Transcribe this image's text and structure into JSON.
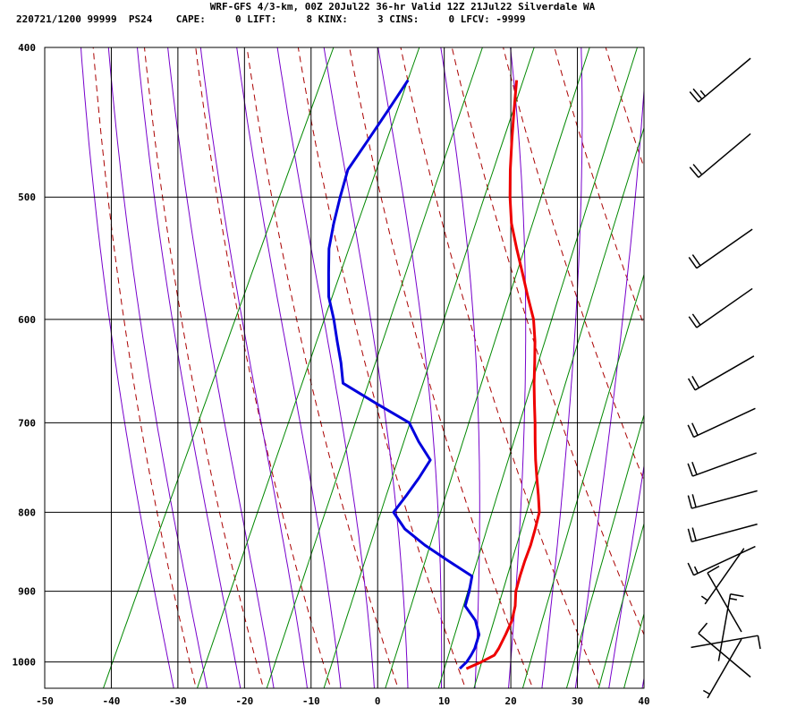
{
  "header": {
    "line1": "WRF-GFS 4/3-km, 00Z 20Jul22 36-hr Valid 12Z 21Jul22 Silverdale WA",
    "line2": "220721/1200 99999  PS24    CAPE:     0 LIFT:     8 KINX:     3 CINS:     0 LFCV: -9999"
  },
  "colors": {
    "temperature": "#ee0000",
    "dewpoint": "#0000dd",
    "dry_adiabat": "#aa0000",
    "moist_adiabat": "#7700cc",
    "mixing_ratio": "#008800",
    "grid": "#000000",
    "wind_barb": "#000000"
  },
  "chart_data": {
    "type": "line",
    "title": "WRF-GFS 4/3-km, 00Z 20Jul22 36-hr Valid 12Z 21Jul22 Silverdale WA",
    "x_axis": {
      "label": "",
      "range": [
        -50,
        40
      ],
      "ticks": [
        -50,
        -40,
        -30,
        -20,
        -10,
        0,
        10,
        20,
        30,
        40
      ]
    },
    "y_axis": {
      "label": "",
      "scale": "log",
      "range": [
        1040,
        400
      ],
      "ticks": [
        400,
        500,
        600,
        700,
        800,
        900,
        1000
      ]
    },
    "grid": true,
    "series": [
      {
        "role": "temperature",
        "pressure": [
          1010,
          1000,
          990,
          980,
          960,
          940,
          920,
          900,
          880,
          860,
          840,
          820,
          800,
          780,
          760,
          740,
          720,
          700,
          680,
          660,
          640,
          620,
          600,
          580,
          560,
          540,
          520,
          500,
          480,
          460,
          440,
          420
        ],
        "temp": [
          12.0,
          13.8,
          15.3,
          15.5,
          15.6,
          15.6,
          15.1,
          14.2,
          13.8,
          13.5,
          13.3,
          12.9,
          12.4,
          11.1,
          9.7,
          8.3,
          7.0,
          5.7,
          4.3,
          2.9,
          1.6,
          0.2,
          -1.5,
          -3.9,
          -6.3,
          -8.8,
          -11.3,
          -13.3,
          -15.1,
          -16.8,
          -18.5,
          -20.2
        ]
      },
      {
        "role": "dewpoint",
        "pressure": [
          1010,
          1000,
          990,
          980,
          960,
          940,
          920,
          900,
          880,
          860,
          840,
          820,
          800,
          780,
          760,
          740,
          720,
          700,
          680,
          660,
          640,
          620,
          600,
          580,
          560,
          540,
          520,
          500,
          480,
          460,
          440,
          420
        ],
        "dewpoint": [
          11.0,
          11.6,
          11.8,
          11.9,
          11.6,
          10.1,
          7.6,
          7.2,
          6.6,
          2.0,
          -2.6,
          -6.7,
          -9.5,
          -8.7,
          -8.0,
          -7.5,
          -10.5,
          -13.2,
          -19.5,
          -25.8,
          -27.5,
          -29.5,
          -31.5,
          -33.8,
          -35.4,
          -37.0,
          -38.0,
          -38.8,
          -39.5,
          -38.5,
          -37.5,
          -36.5
        ]
      }
    ],
    "wind_barbs": [
      {
        "pressure": 420,
        "direction": 230,
        "speed_kt": 25
      },
      {
        "pressure": 470,
        "direction": 230,
        "speed_kt": 20
      },
      {
        "pressure": 540,
        "direction": 235,
        "speed_kt": 20
      },
      {
        "pressure": 590,
        "direction": 235,
        "speed_kt": 20
      },
      {
        "pressure": 650,
        "direction": 240,
        "speed_kt": 20
      },
      {
        "pressure": 700,
        "direction": 245,
        "speed_kt": 20
      },
      {
        "pressure": 745,
        "direction": 250,
        "speed_kt": 20
      },
      {
        "pressure": 785,
        "direction": 255,
        "speed_kt": 20
      },
      {
        "pressure": 825,
        "direction": 255,
        "speed_kt": 20
      },
      {
        "pressure": 860,
        "direction": 245,
        "speed_kt": 15
      },
      {
        "pressure": 880,
        "direction": 215,
        "speed_kt": 5
      },
      {
        "pressure": 915,
        "direction": 330,
        "speed_kt": 10
      },
      {
        "pressure": 950,
        "direction": 10,
        "speed_kt": 15
      },
      {
        "pressure": 970,
        "direction": 80,
        "speed_kt": 10
      },
      {
        "pressure": 990,
        "direction": 310,
        "speed_kt": 10
      },
      {
        "pressure": 1010,
        "direction": 210,
        "speed_kt": 5
      }
    ]
  }
}
